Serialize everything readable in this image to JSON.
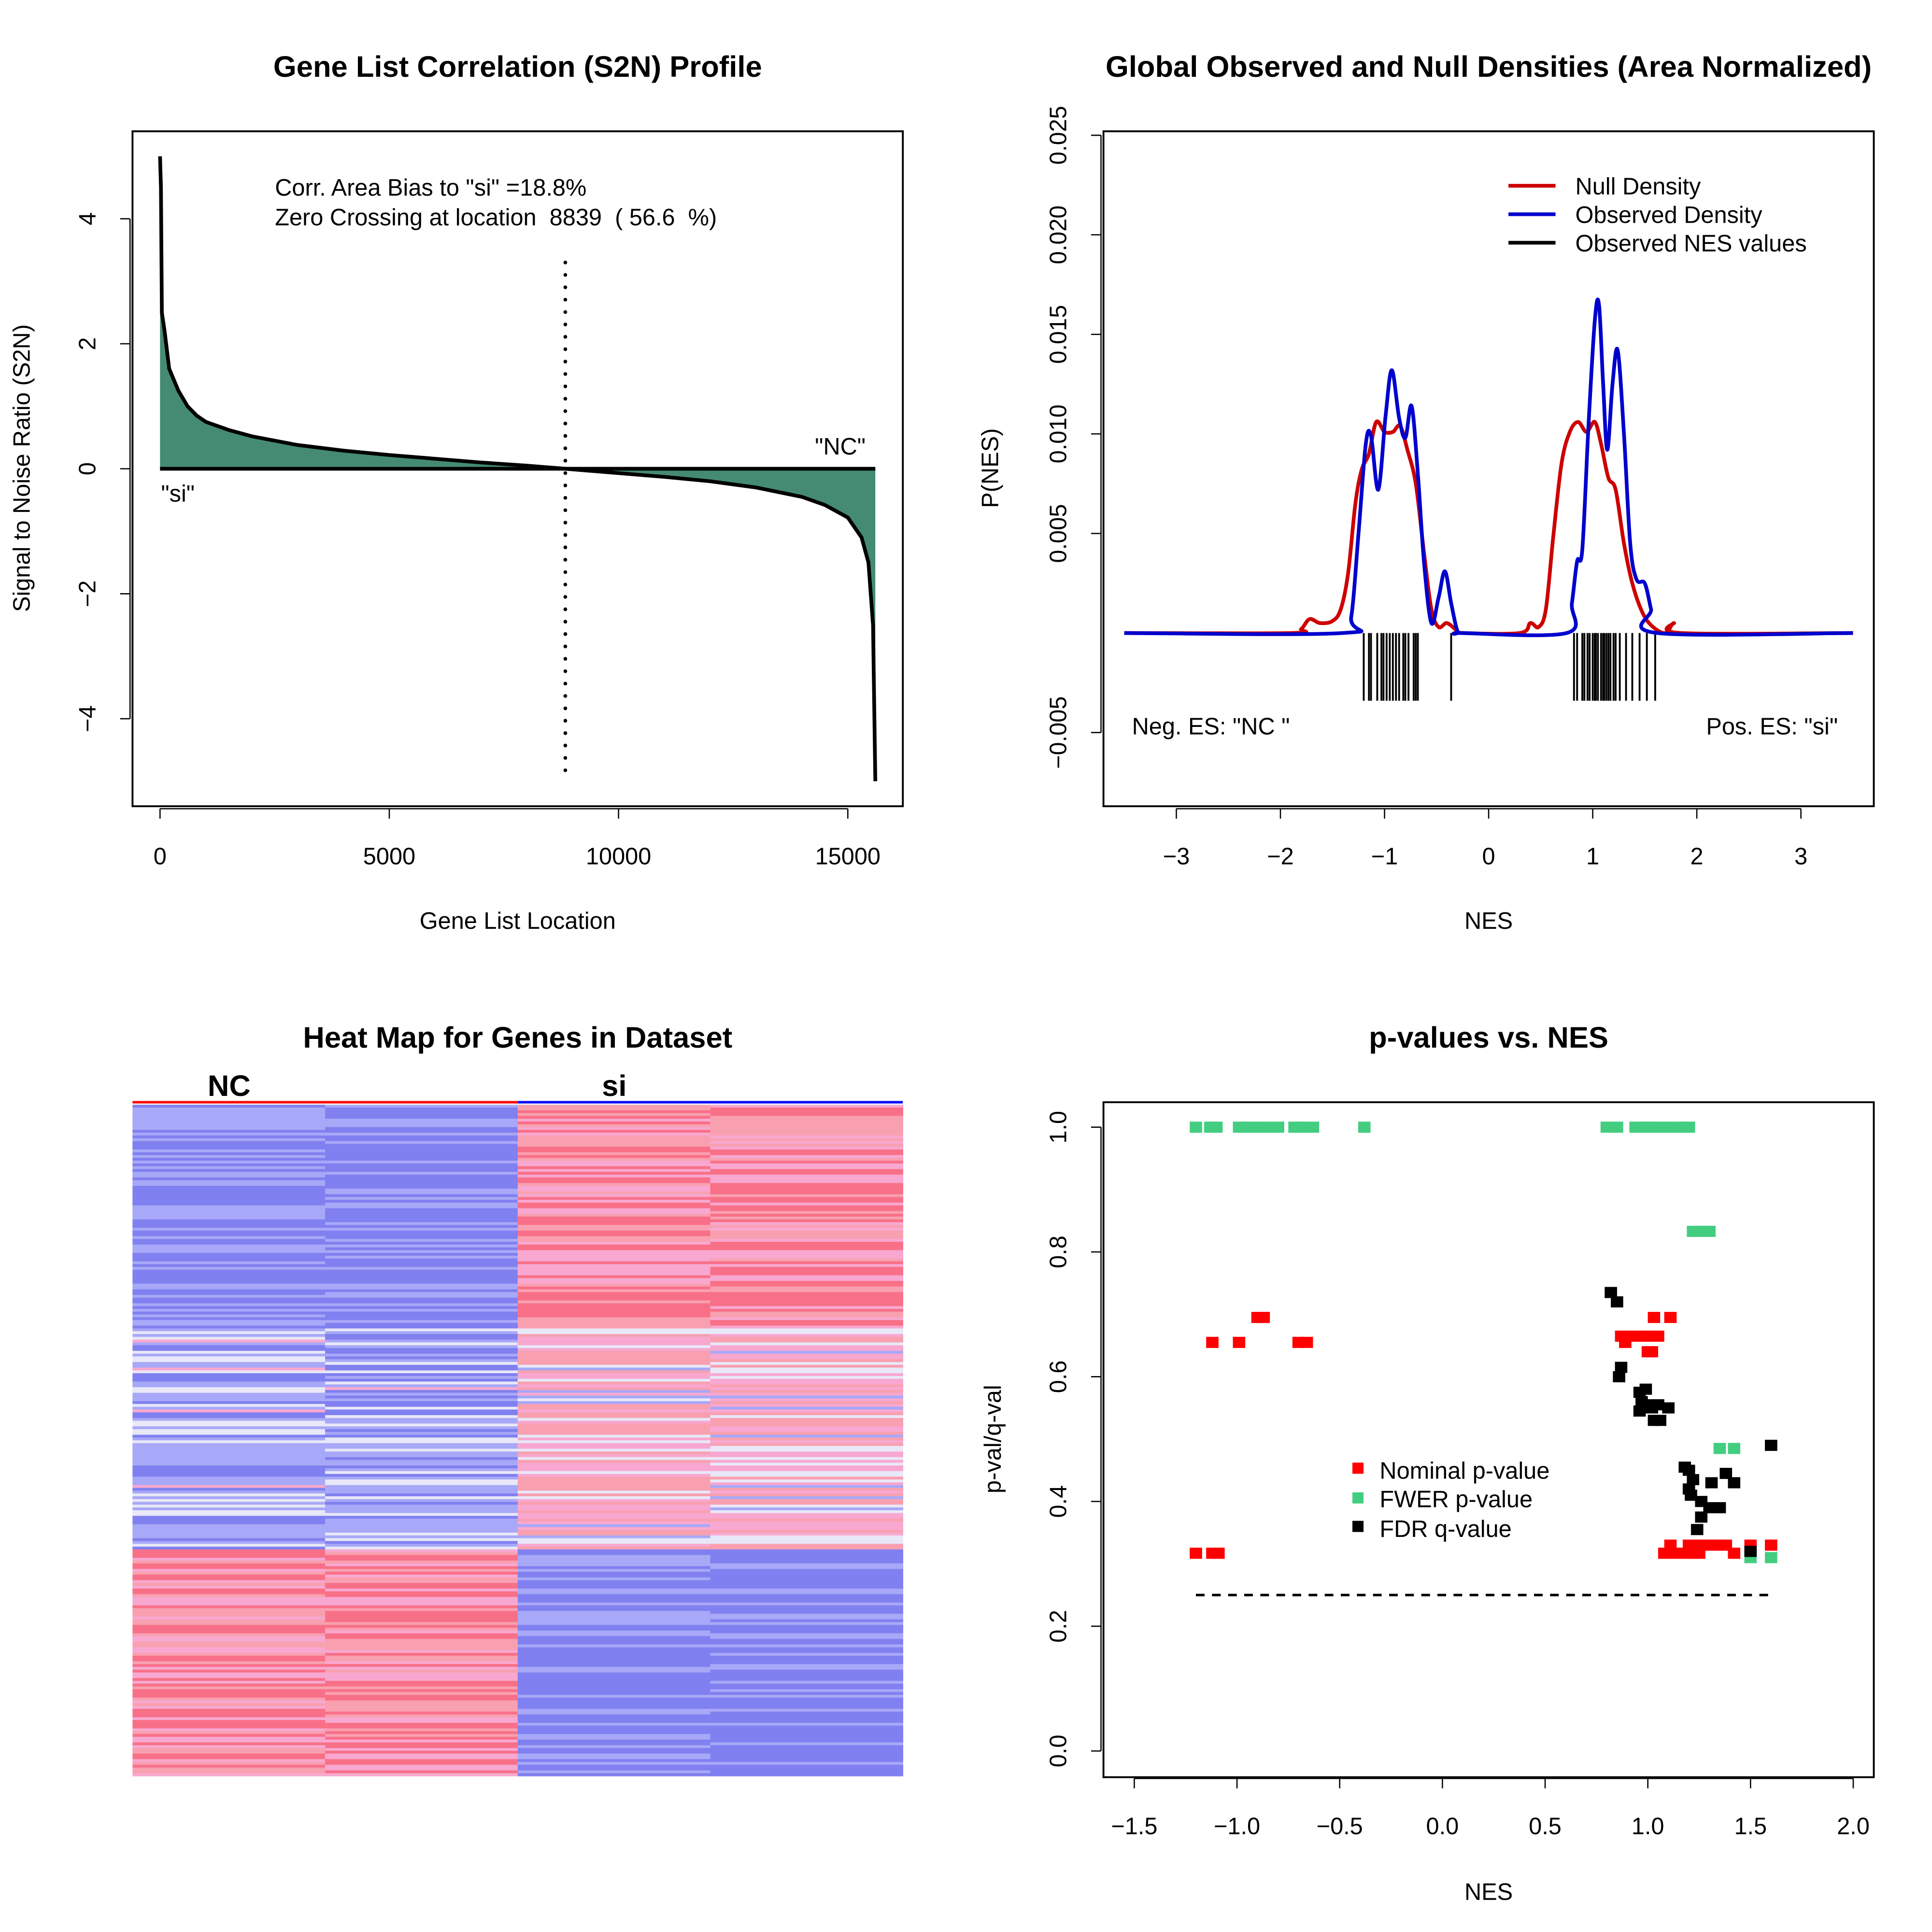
{
  "chart_data": [
    {
      "type": "area",
      "title": "Gene List Correlation (S2N) Profile",
      "xlabel": "Gene List Location",
      "ylabel": "Signal to Noise Ratio (S2N)",
      "xlim": [
        -600,
        16200
      ],
      "ylim": [
        -5.4,
        5.4
      ],
      "xticks": [
        0,
        5000,
        10000,
        15000
      ],
      "yticks": [
        -4,
        -2,
        0,
        2,
        4
      ],
      "fill_color": "#458b74",
      "annotations": [
        "Corr. Area Bias to \"si\" =18.8%",
        "Zero Crossing at location  8839  ( 56.6  %)"
      ],
      "left_label": "\"si\"",
      "right_label": "\"NC\"",
      "zero_crossing": 8839,
      "x": [
        0,
        20,
        40,
        100,
        200,
        400,
        600,
        800,
        1000,
        1500,
        2000,
        3000,
        4000,
        5000,
        6000,
        7000,
        8000,
        8839,
        10000,
        11000,
        12000,
        13000,
        14000,
        14500,
        15000,
        15300,
        15450,
        15550,
        15600
      ],
      "y": [
        5,
        4.5,
        2.5,
        2.2,
        1.6,
        1.25,
        1.0,
        0.85,
        0.75,
        0.62,
        0.52,
        0.38,
        0.29,
        0.22,
        0.16,
        0.1,
        0.05,
        0,
        -0.07,
        -0.13,
        -0.2,
        -0.3,
        -0.45,
        -0.58,
        -0.78,
        -1.1,
        -1.5,
        -2.5,
        -5
      ]
    },
    {
      "type": "line",
      "title": "Global Observed and Null Densities (Area Normalized)",
      "xlabel": "NES",
      "ylabel": "P(NES)",
      "xlim": [
        -3.7,
        3.7
      ],
      "ylim": [
        -0.0087,
        0.0252
      ],
      "xticks": [
        -3,
        -2,
        -1,
        0,
        1,
        2,
        3
      ],
      "yticks": [
        "-0.005",
        "0.005",
        "0.010",
        "0.015",
        "0.020",
        "0.025"
      ],
      "legend_position": "top-right",
      "neg_label": "Neg. ES: \"NC \"",
      "pos_label": "Pos. ES: \"si\"",
      "series": [
        {
          "name": "Null Density",
          "color": "#cd0000",
          "points": [
            [
              -3.5,
              0
            ],
            [
              -1.9,
              0
            ],
            [
              -1.8,
              0.0002
            ],
            [
              -1.72,
              0.0007
            ],
            [
              -1.62,
              0.0005
            ],
            [
              -1.5,
              0.0006
            ],
            [
              -1.42,
              0.0012
            ],
            [
              -1.35,
              0.003
            ],
            [
              -1.28,
              0.0065
            ],
            [
              -1.22,
              0.0082
            ],
            [
              -1.15,
              0.009
            ],
            [
              -1.08,
              0.0106
            ],
            [
              -1.0,
              0.0101
            ],
            [
              -0.92,
              0.0101
            ],
            [
              -0.85,
              0.0104
            ],
            [
              -0.78,
              0.0092
            ],
            [
              -0.7,
              0.0075
            ],
            [
              -0.62,
              0.004
            ],
            [
              -0.55,
              0.0012
            ],
            [
              -0.48,
              0.0003
            ],
            [
              -0.4,
              0.0005
            ],
            [
              -0.3,
              0.0001
            ],
            [
              -0.25,
              0
            ],
            [
              0.3,
              0
            ],
            [
              0.4,
              0.0005
            ],
            [
              0.48,
              0.0003
            ],
            [
              0.55,
              0.0012
            ],
            [
              0.62,
              0.0048
            ],
            [
              0.7,
              0.0085
            ],
            [
              0.78,
              0.0101
            ],
            [
              0.86,
              0.0106
            ],
            [
              0.94,
              0.0101
            ],
            [
              1.02,
              0.0106
            ],
            [
              1.08,
              0.0095
            ],
            [
              1.15,
              0.0078
            ],
            [
              1.22,
              0.0072
            ],
            [
              1.3,
              0.0045
            ],
            [
              1.38,
              0.0025
            ],
            [
              1.48,
              0.001
            ],
            [
              1.58,
              0.0003
            ],
            [
              1.7,
              0
            ],
            [
              1.78,
              0.0005
            ],
            [
              1.85,
              0
            ],
            [
              3.5,
              0
            ]
          ]
        },
        {
          "name": "Observed Density",
          "color": "#0000cd",
          "points": [
            [
              -3.5,
              0
            ],
            [
              -1.4,
              0
            ],
            [
              -1.32,
              0.0008
            ],
            [
              -1.25,
              0.005
            ],
            [
              -1.18,
              0.0095
            ],
            [
              -1.13,
              0.0099
            ],
            [
              -1.06,
              0.0072
            ],
            [
              -0.99,
              0.0109
            ],
            [
              -0.93,
              0.0132
            ],
            [
              -0.86,
              0.0108
            ],
            [
              -0.8,
              0.0098
            ],
            [
              -0.74,
              0.0114
            ],
            [
              -0.68,
              0.008
            ],
            [
              -0.62,
              0.0035
            ],
            [
              -0.55,
              0.0005
            ],
            [
              -0.48,
              0.0018
            ],
            [
              -0.42,
              0.0031
            ],
            [
              -0.36,
              0.0015
            ],
            [
              -0.3,
              0.0001
            ],
            [
              -0.25,
              0
            ],
            [
              0.75,
              0
            ],
            [
              0.8,
              0.0015
            ],
            [
              0.85,
              0.0036
            ],
            [
              0.9,
              0.0042
            ],
            [
              0.96,
              0.0105
            ],
            [
              1.02,
              0.0157
            ],
            [
              1.06,
              0.0165
            ],
            [
              1.1,
              0.0125
            ],
            [
              1.14,
              0.0092
            ],
            [
              1.19,
              0.0125
            ],
            [
              1.24,
              0.0142
            ],
            [
              1.3,
              0.01
            ],
            [
              1.36,
              0.0045
            ],
            [
              1.42,
              0.0027
            ],
            [
              1.5,
              0.0025
            ],
            [
              1.56,
              0.0012
            ],
            [
              1.62,
              0
            ],
            [
              3.5,
              0
            ]
          ]
        }
      ],
      "rug": {
        "name": "Observed NES values",
        "color": "#000000",
        "values": [
          -1.2,
          -1.15,
          -1.13,
          -1.07,
          -1.03,
          -1.01,
          -0.98,
          -0.95,
          -0.92,
          -0.89,
          -0.86,
          -0.82,
          -0.8,
          -0.77,
          -0.72,
          -0.7,
          -0.68,
          -0.36,
          0.82,
          0.85,
          0.9,
          0.92,
          0.95,
          0.97,
          1.0,
          1.02,
          1.03,
          1.05,
          1.08,
          1.1,
          1.11,
          1.13,
          1.15,
          1.17,
          1.2,
          1.22,
          1.26,
          1.32,
          1.38,
          1.45,
          1.52,
          1.6
        ]
      }
    },
    {
      "type": "heatmap",
      "title": "Heat Map for Genes in Dataset",
      "groups": [
        {
          "name": "NC",
          "color": "#ff0000"
        },
        {
          "name": "si",
          "color": "#0000ff"
        }
      ],
      "colors": {
        "low": "#8080f0",
        "mid": "#e8e8f8",
        "high_light": "#f8a8d0",
        "high": "#f87088"
      }
    },
    {
      "type": "scatter",
      "title": "p-values vs. NES",
      "xlabel": "NES",
      "ylabel": "p-val/q-val",
      "xlim": [
        -1.65,
        2.1
      ],
      "ylim": [
        -0.04,
        1.04
      ],
      "xticks": [
        "-1.5",
        "-1.0",
        "-0.5",
        "0.0",
        "0.5",
        "1.0",
        "1.5",
        "2.0"
      ],
      "yticks": [
        "0.0",
        "0.2",
        "0.4",
        "0.6",
        "0.8",
        "1.0"
      ],
      "threshold": 0.25,
      "threshold_range": [
        -1.2,
        1.6
      ],
      "legend_position": "center",
      "series": [
        {
          "name": "Nominal p-value",
          "color": "#ff0000",
          "points": [
            [
              -0.9,
              0.695
            ],
            [
              -0.87,
              0.695
            ],
            [
              -1.12,
              0.655
            ],
            [
              -0.99,
              0.655
            ],
            [
              -0.7,
              0.655
            ],
            [
              -0.66,
              0.655
            ],
            [
              -1.2,
              0.317
            ],
            [
              -1.12,
              0.317
            ],
            [
              -1.09,
              0.317
            ],
            [
              1.03,
              0.695
            ],
            [
              1.11,
              0.695
            ],
            [
              0.87,
              0.665
            ],
            [
              0.92,
              0.665
            ],
            [
              0.97,
              0.665
            ],
            [
              1.0,
              0.665
            ],
            [
              1.05,
              0.665
            ],
            [
              0.89,
              0.655
            ],
            [
              1.02,
              0.64
            ],
            [
              1.0,
              0.64
            ],
            [
              1.08,
              0.317
            ],
            [
              1.13,
              0.317
            ],
            [
              1.18,
              0.317
            ],
            [
              1.22,
              0.317
            ],
            [
              1.25,
              0.317
            ],
            [
              1.11,
              0.33
            ],
            [
              1.2,
              0.33
            ],
            [
              1.26,
              0.33
            ],
            [
              1.3,
              0.33
            ],
            [
              1.34,
              0.33
            ],
            [
              1.38,
              0.33
            ],
            [
              1.42,
              0.317
            ],
            [
              1.5,
              0.33
            ],
            [
              1.6,
              0.33
            ]
          ]
        },
        {
          "name": "FWER p-value",
          "color": "#43cd80",
          "points": [
            [
              -1.2,
              1.0
            ],
            [
              -1.13,
              1.0
            ],
            [
              -1.1,
              1.0
            ],
            [
              -0.99,
              1.0
            ],
            [
              -0.95,
              1.0
            ],
            [
              -0.9,
              1.0
            ],
            [
              -0.85,
              1.0
            ],
            [
              -0.8,
              1.0
            ],
            [
              -0.72,
              1.0
            ],
            [
              -0.68,
              1.0
            ],
            [
              -0.63,
              1.0
            ],
            [
              -0.38,
              1.0
            ],
            [
              0.8,
              1.0
            ],
            [
              0.85,
              1.0
            ],
            [
              0.94,
              1.0
            ],
            [
              0.98,
              1.0
            ],
            [
              1.02,
              1.0
            ],
            [
              1.06,
              1.0
            ],
            [
              1.1,
              1.0
            ],
            [
              1.16,
              1.0
            ],
            [
              1.2,
              1.0
            ],
            [
              1.22,
              0.833
            ],
            [
              1.26,
              0.833
            ],
            [
              1.3,
              0.833
            ],
            [
              1.35,
              0.485
            ],
            [
              1.42,
              0.485
            ],
            [
              1.5,
              0.31
            ],
            [
              1.6,
              0.31
            ]
          ]
        },
        {
          "name": "FDR q-value",
          "color": "#000000",
          "points": [
            [
              0.82,
              0.735
            ],
            [
              0.85,
              0.72
            ],
            [
              0.87,
              0.615
            ],
            [
              0.86,
              0.6
            ],
            [
              0.96,
              0.575
            ],
            [
              0.99,
              0.58
            ],
            [
              0.97,
              0.56
            ],
            [
              1.0,
              0.555
            ],
            [
              0.96,
              0.545
            ],
            [
              1.02,
              0.55
            ],
            [
              1.05,
              0.555
            ],
            [
              1.1,
              0.55
            ],
            [
              1.03,
              0.53
            ],
            [
              1.06,
              0.53
            ],
            [
              1.6,
              0.49
            ],
            [
              1.18,
              0.455
            ],
            [
              1.2,
              0.45
            ],
            [
              1.22,
              0.435
            ],
            [
              1.31,
              0.43
            ],
            [
              1.38,
              0.445
            ],
            [
              1.42,
              0.43
            ],
            [
              1.2,
              0.42
            ],
            [
              1.21,
              0.41
            ],
            [
              1.26,
              0.4
            ],
            [
              1.3,
              0.39
            ],
            [
              1.35,
              0.39
            ],
            [
              1.26,
              0.375
            ],
            [
              1.24,
              0.355
            ],
            [
              1.5,
              0.32
            ]
          ]
        }
      ]
    }
  ]
}
